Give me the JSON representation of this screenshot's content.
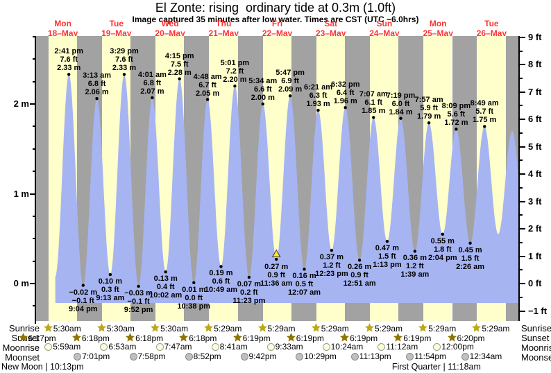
{
  "header": {
    "title": "El Zonte: rising  ordinary tide at 0.3m (1.0ft)",
    "subtitle": "Image captured 35 minutes after low water. Times are CST (UTC −6.0hrs)"
  },
  "colors": {
    "day_band": "#FFFFCC",
    "night_band": "#A2A2A2",
    "tide_fill": "#A7B4F2",
    "day_label_red": "#FF3333",
    "marker_yellow": "#FFE33F",
    "sunrise_star": "#BCA818",
    "sunset_star": "#8F7400",
    "moonrise_fill": "#FFFFD6",
    "moonrise_border": "#999999",
    "moonset_fill": "#C0C0C0",
    "moonset_border": "#8A8A8A",
    "dot": "#000000"
  },
  "chart_data": {
    "type": "area",
    "title": "El Zonte: rising  ordinary tide at 0.3m (1.0ft)",
    "xlabel": "",
    "ylabel_left": "m",
    "ylabel_right": "ft",
    "ylim_m": [
      -0.42,
      2.76
    ],
    "grid": false,
    "day_shading": {
      "sunrise_frac": 0.229,
      "sunset_frac": 0.763
    },
    "days": [
      {
        "weekday": "Mon",
        "date": "18–May"
      },
      {
        "weekday": "Tue",
        "date": "19–May"
      },
      {
        "weekday": "Wed",
        "date": "20–May"
      },
      {
        "weekday": "Thu",
        "date": "21–May"
      },
      {
        "weekday": "Fri",
        "date": "22–May"
      },
      {
        "weekday": "Sat",
        "date": "23–May"
      },
      {
        "weekday": "Sun",
        "date": "24–May"
      },
      {
        "weekday": "Mon",
        "date": "25–May"
      },
      {
        "weekday": "Tue",
        "date": "26–May"
      }
    ],
    "y_axis_left": {
      "majors": [
        {
          "v": 0,
          "label": "0 m"
        },
        {
          "v": 1,
          "label": "1 m"
        },
        {
          "v": 2,
          "label": "2 m"
        }
      ],
      "minor_step": 0.25,
      "minor_min": -0.25,
      "minor_max": 2.75
    },
    "y_axis_right": {
      "majors": [
        {
          "v": 9,
          "label": "9 ft"
        },
        {
          "v": 8,
          "label": "8 ft"
        },
        {
          "v": 7,
          "label": "7 ft"
        },
        {
          "v": 6,
          "label": "6 ft"
        },
        {
          "v": 5,
          "label": "5 ft"
        },
        {
          "v": 4,
          "label": "4 ft"
        },
        {
          "v": 3,
          "label": "3 ft"
        },
        {
          "v": 2,
          "label": "2 ft"
        },
        {
          "v": 1,
          "label": "1 ft"
        },
        {
          "v": 0,
          "label": "0 ft"
        },
        {
          "v": -1,
          "label": "−1 ft"
        }
      ],
      "minor_step": 1,
      "minor_min": -0.5,
      "minor_max": 8.5
    },
    "tide_events": [
      {
        "day": 0,
        "t": 8.6,
        "type": "low",
        "m": 0.08,
        "annotated": false
      },
      {
        "day": 0,
        "t": 14.68,
        "type": "high",
        "m": 2.33,
        "annotated": true,
        "lines": [
          "2:41 pm",
          "7.6 ft",
          "2.33 m"
        ]
      },
      {
        "day": 0,
        "t": 21.07,
        "type": "low",
        "m": -0.02,
        "annotated": true,
        "lines": [
          "−0.02 m",
          "−0.1 ft",
          "9:04 pm"
        ]
      },
      {
        "day": 1,
        "t": 3.22,
        "type": "high",
        "m": 2.06,
        "annotated": true,
        "lines": [
          "3:13 am",
          "6.8 ft",
          "2.06 m"
        ]
      },
      {
        "day": 1,
        "t": 9.22,
        "type": "low",
        "m": 0.1,
        "annotated": true,
        "lines": [
          "0.10 m",
          "0.3 ft",
          "9:13 am"
        ]
      },
      {
        "day": 1,
        "t": 15.48,
        "type": "high",
        "m": 2.33,
        "annotated": true,
        "lines": [
          "3:29 pm",
          "7.6 ft",
          "2.33 m"
        ]
      },
      {
        "day": 1,
        "t": 21.87,
        "type": "low",
        "m": -0.03,
        "annotated": true,
        "lines": [
          "−0.03 m",
          "−0.1 ft",
          "9:52 pm"
        ]
      },
      {
        "day": 2,
        "t": 4.02,
        "type": "high",
        "m": 2.07,
        "annotated": true,
        "lines": [
          "4:01 am",
          "6.8 ft",
          "2.07 m"
        ]
      },
      {
        "day": 2,
        "t": 10.03,
        "type": "low",
        "m": 0.13,
        "annotated": true,
        "lines": [
          "0.13 m",
          "0.4 ft",
          "10:02 am"
        ]
      },
      {
        "day": 2,
        "t": 16.25,
        "type": "high",
        "m": 2.28,
        "annotated": true,
        "lines": [
          "4:15 pm",
          "7.5 ft",
          "2.28 m"
        ]
      },
      {
        "day": 2,
        "t": 22.63,
        "type": "low",
        "m": 0.01,
        "annotated": true,
        "lines": [
          "0.01 m",
          "0.0 ft",
          "10:38 pm"
        ]
      },
      {
        "day": 3,
        "t": 4.8,
        "type": "high",
        "m": 2.05,
        "annotated": true,
        "lines": [
          "4:48 am",
          "6.7 ft",
          "2.05 m"
        ]
      },
      {
        "day": 3,
        "t": 10.82,
        "type": "low",
        "m": 0.19,
        "annotated": true,
        "lines": [
          "0.19 m",
          "0.6 ft",
          "10:49 am"
        ]
      },
      {
        "day": 3,
        "t": 17.02,
        "type": "high",
        "m": 2.2,
        "annotated": true,
        "lines": [
          "5:01 pm",
          "7.2 ft",
          "2.20 m"
        ]
      },
      {
        "day": 3,
        "t": 23.38,
        "type": "low",
        "m": 0.07,
        "annotated": true,
        "lines": [
          "0.07 m",
          "0.2 ft",
          "11:23 pm"
        ]
      },
      {
        "day": 4,
        "t": 5.57,
        "type": "high",
        "m": 2.0,
        "annotated": true,
        "lines": [
          "5:34 am",
          "6.6 ft",
          "2.00 m"
        ]
      },
      {
        "day": 4,
        "t": 11.6,
        "type": "low",
        "m": 0.27,
        "annotated": true,
        "marker": true,
        "lines": [
          "0.27 m",
          "0.9 ft",
          "11:36 am"
        ]
      },
      {
        "day": 4,
        "t": 17.78,
        "type": "high",
        "m": 2.09,
        "annotated": true,
        "lines": [
          "5:47 pm",
          "6.9 ft",
          "2.09 m"
        ]
      },
      {
        "day": 5,
        "t": 0.12,
        "type": "low",
        "m": 0.16,
        "annotated": true,
        "lines": [
          "0.16 m",
          "0.5 ft",
          "12:07 am"
        ]
      },
      {
        "day": 5,
        "t": 6.35,
        "type": "high",
        "m": 1.93,
        "annotated": true,
        "lines": [
          "6:21 am",
          "6.3 ft",
          "1.93 m"
        ]
      },
      {
        "day": 5,
        "t": 12.38,
        "type": "low",
        "m": 0.37,
        "annotated": true,
        "lines": [
          "0.37 m",
          "1.2 ft",
          "12:23 pm"
        ]
      },
      {
        "day": 5,
        "t": 18.53,
        "type": "high",
        "m": 1.96,
        "annotated": true,
        "lines": [
          "6:32 pm",
          "6.4 ft",
          "1.96 m"
        ]
      },
      {
        "day": 6,
        "t": 0.85,
        "type": "low",
        "m": 0.26,
        "annotated": true,
        "lines": [
          "0.26 m",
          "0.9 ft",
          "12:51 am"
        ]
      },
      {
        "day": 6,
        "t": 7.12,
        "type": "high",
        "m": 1.85,
        "annotated": true,
        "lines": [
          "7:07 am",
          "6.1 ft",
          "1.85 m"
        ]
      },
      {
        "day": 6,
        "t": 13.22,
        "type": "low",
        "m": 0.47,
        "annotated": true,
        "lines": [
          "0.47 m",
          "1.5 ft",
          "1:13 pm"
        ]
      },
      {
        "day": 6,
        "t": 19.32,
        "type": "high",
        "m": 1.84,
        "annotated": true,
        "lines": [
          "7:19 pm",
          "6.0 ft",
          "1.84 m"
        ]
      },
      {
        "day": 7,
        "t": 1.65,
        "type": "low",
        "m": 0.36,
        "annotated": true,
        "lines": [
          "0.36 m",
          "1.2 ft",
          "1:39 am"
        ]
      },
      {
        "day": 7,
        "t": 7.95,
        "type": "high",
        "m": 1.79,
        "annotated": true,
        "lines": [
          "7:57 am",
          "5.9 ft",
          "1.79 m"
        ]
      },
      {
        "day": 7,
        "t": 14.07,
        "type": "low",
        "m": 0.55,
        "annotated": true,
        "lines": [
          "0.55 m",
          "1.8 ft",
          "2:04 pm"
        ]
      },
      {
        "day": 7,
        "t": 20.15,
        "type": "high",
        "m": 1.72,
        "annotated": true,
        "lines": [
          "8:09 pm",
          "5.6 ft",
          "1.72 m"
        ]
      },
      {
        "day": 8,
        "t": 2.43,
        "type": "low",
        "m": 0.45,
        "annotated": true,
        "lines": [
          "0.45 m",
          "1.5 ft",
          "2:26 am"
        ]
      },
      {
        "day": 8,
        "t": 8.82,
        "type": "high",
        "m": 1.75,
        "annotated": true,
        "lines": [
          "8:49 am",
          "5.7 ft",
          "1.75 m"
        ]
      },
      {
        "day": 8,
        "t": 14.95,
        "type": "low",
        "m": 0.55,
        "annotated": false
      },
      {
        "day": 8,
        "t": 21.2,
        "type": "high",
        "m": 1.7,
        "annotated": false
      },
      {
        "day": 9,
        "t": 3.3,
        "type": "low",
        "m": 0.5,
        "annotated": false
      }
    ],
    "astro_rows": [
      {
        "name": "sunrise",
        "label": "Sunrise",
        "icon": "sunrise-star",
        "entries": [
          {
            "day": 0,
            "t": 5.5,
            "time": "5:30am"
          },
          {
            "day": 1,
            "t": 5.5,
            "time": "5:30am"
          },
          {
            "day": 2,
            "t": 5.5,
            "time": "5:30am"
          },
          {
            "day": 3,
            "t": 5.48,
            "time": "5:29am"
          },
          {
            "day": 4,
            "t": 5.48,
            "time": "5:29am"
          },
          {
            "day": 5,
            "t": 5.48,
            "time": "5:29am"
          },
          {
            "day": 6,
            "t": 5.48,
            "time": "5:29am"
          },
          {
            "day": 7,
            "t": 5.48,
            "time": "5:29am"
          },
          {
            "day": 8,
            "t": 5.48,
            "time": "5:29am"
          }
        ]
      },
      {
        "name": "sunset",
        "label": "Sunset",
        "icon": "sunset-star",
        "entries": [
          {
            "day": -1,
            "t": 18.28,
            "time": "6:17pm"
          },
          {
            "day": 0,
            "t": 18.3,
            "time": "6:18pm"
          },
          {
            "day": 1,
            "t": 18.3,
            "time": "6:18pm"
          },
          {
            "day": 2,
            "t": 18.3,
            "time": "6:18pm"
          },
          {
            "day": 3,
            "t": 18.32,
            "time": "6:19pm"
          },
          {
            "day": 4,
            "t": 18.32,
            "time": "6:19pm"
          },
          {
            "day": 5,
            "t": 18.32,
            "time": "6:19pm"
          },
          {
            "day": 6,
            "t": 18.32,
            "time": "6:19pm"
          },
          {
            "day": 7,
            "t": 18.33,
            "time": "6:20pm"
          }
        ]
      },
      {
        "name": "moonrise",
        "label": "Moonrise",
        "icon": "moonrise-circle",
        "entries": [
          {
            "day": 0,
            "t": 5.98,
            "time": "5:59am"
          },
          {
            "day": 1,
            "t": 6.88,
            "time": "6:53am"
          },
          {
            "day": 2,
            "t": 7.78,
            "time": "7:47am"
          },
          {
            "day": 3,
            "t": 8.68,
            "time": "8:41am"
          },
          {
            "day": 4,
            "t": 9.55,
            "time": "9:33am"
          },
          {
            "day": 5,
            "t": 10.4,
            "time": "10:24am"
          },
          {
            "day": 6,
            "t": 11.2,
            "time": "11:12am"
          },
          {
            "day": 7,
            "t": 12.0,
            "time": "12:00pm"
          }
        ]
      },
      {
        "name": "moonset",
        "label": "Moonset",
        "icon": "moonset-circle",
        "entries": [
          {
            "day": 0,
            "t": 19.02,
            "time": "7:01pm"
          },
          {
            "day": 1,
            "t": 19.97,
            "time": "7:58pm"
          },
          {
            "day": 2,
            "t": 20.87,
            "time": "8:52pm"
          },
          {
            "day": 3,
            "t": 21.7,
            "time": "9:42pm"
          },
          {
            "day": 4,
            "t": 22.48,
            "time": "10:29pm"
          },
          {
            "day": 5,
            "t": 23.22,
            "time": "11:13pm"
          },
          {
            "day": 6,
            "t": 23.9,
            "time": "11:54pm"
          },
          {
            "day": 8,
            "t": 0.57,
            "time": "12:34am"
          }
        ]
      }
    ],
    "moon_phases": [
      {
        "label": "New Moon | 10:13pm",
        "align": "left"
      },
      {
        "label": "First Quarter | 11:18am",
        "day": 7,
        "t": 11.3
      }
    ]
  }
}
